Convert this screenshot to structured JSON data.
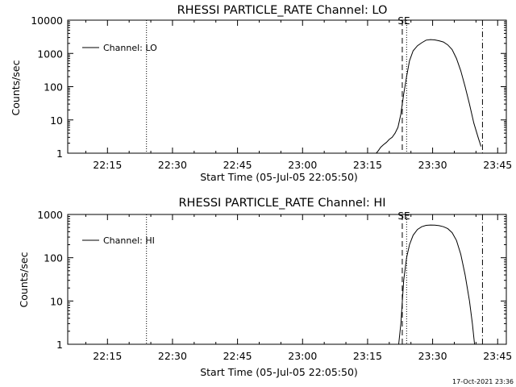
{
  "footer_timestamp": "17-Oct-2021 23:36",
  "chart_data": [
    {
      "type": "line",
      "title": "RHESSI PARTICLE_RATE Channel: LO",
      "xlabel": "Start Time (05-Jul-05 22:05:50)",
      "ylabel": "Counts/sec",
      "yscale": "log",
      "ylim": [
        1,
        10000
      ],
      "y_ticks": [
        1,
        10,
        100,
        1000,
        10000
      ],
      "y_tick_labels": [
        "1",
        "10",
        "100",
        "1000",
        "10000"
      ],
      "xlim": [
        "22:05:50",
        "23:47:00"
      ],
      "x_tick_labels": [
        "22:15",
        "22:30",
        "22:45",
        "23:00",
        "23:15",
        "23:30",
        "23:45"
      ],
      "legend": {
        "position": "top-left",
        "entries": [
          "Channel: LO"
        ]
      },
      "marker_label": "SE",
      "markers": [
        {
          "style": "dotted",
          "time": "22:24:00"
        },
        {
          "style": "dashed",
          "time": "23:23:00"
        },
        {
          "style": "dotted",
          "time": "23:24:00"
        },
        {
          "style": "dash-dot",
          "time": "23:41:30"
        }
      ],
      "series": [
        {
          "name": "Channel: LO",
          "x": [
            "23:17:00",
            "23:17:30",
            "23:18:00",
            "23:18:40",
            "23:19:20",
            "23:20:00",
            "23:20:40",
            "23:21:20",
            "23:22:00",
            "23:22:40",
            "23:23:20",
            "23:24:00",
            "23:24:40",
            "23:25:30",
            "23:26:30",
            "23:27:30",
            "23:28:30",
            "23:29:30",
            "23:30:30",
            "23:31:30",
            "23:32:30",
            "23:33:30",
            "23:34:30",
            "23:35:30",
            "23:36:30",
            "23:37:30",
            "23:38:30",
            "23:39:30",
            "23:40:30",
            "23:41:10"
          ],
          "values": [
            1,
            1.2,
            1.5,
            1.8,
            2.1,
            2.6,
            3,
            4,
            6,
            15,
            60,
            200,
            600,
            1200,
            1700,
            2100,
            2500,
            2600,
            2550,
            2400,
            2200,
            1800,
            1300,
            700,
            300,
            100,
            30,
            8,
            3,
            1.6
          ]
        }
      ]
    },
    {
      "type": "line",
      "title": "RHESSI PARTICLE_RATE Channel: HI",
      "xlabel": "Start Time (05-Jul-05 22:05:50)",
      "ylabel": "Counts/sec",
      "yscale": "log",
      "ylim": [
        1,
        1000
      ],
      "y_ticks": [
        1,
        10,
        100,
        1000
      ],
      "y_tick_labels": [
        "1",
        "10",
        "100",
        "1000"
      ],
      "xlim": [
        "22:05:50",
        "23:47:00"
      ],
      "x_tick_labels": [
        "22:15",
        "22:30",
        "22:45",
        "23:00",
        "23:15",
        "23:30",
        "23:45"
      ],
      "legend": {
        "position": "top-left",
        "entries": [
          "Channel: HI"
        ]
      },
      "marker_label": "SE",
      "markers": [
        {
          "style": "dotted",
          "time": "22:24:00"
        },
        {
          "style": "dashed",
          "time": "23:23:00"
        },
        {
          "style": "dotted",
          "time": "23:24:00"
        },
        {
          "style": "dash-dot",
          "time": "23:41:30"
        }
      ],
      "series": [
        {
          "name": "Channel: HI",
          "x": [
            "23:22:10",
            "23:22:40",
            "23:23:20",
            "23:24:00",
            "23:24:40",
            "23:25:30",
            "23:26:30",
            "23:27:30",
            "23:28:30",
            "23:29:30",
            "23:30:30",
            "23:31:30",
            "23:32:30",
            "23:33:30",
            "23:34:30",
            "23:35:30",
            "23:36:30",
            "23:37:30",
            "23:38:30",
            "23:39:10",
            "23:39:40"
          ],
          "values": [
            1,
            3,
            30,
            100,
            200,
            330,
            450,
            520,
            560,
            570,
            565,
            550,
            520,
            470,
            380,
            250,
            120,
            40,
            10,
            3,
            1
          ]
        }
      ]
    }
  ]
}
